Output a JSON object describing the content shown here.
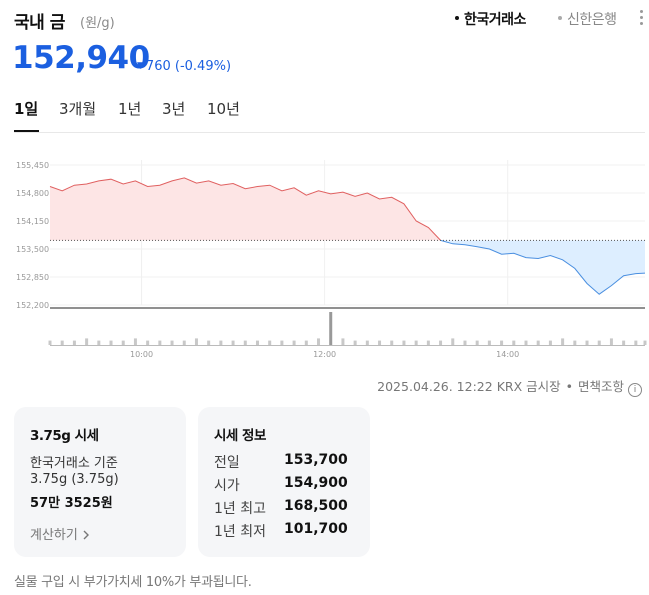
{
  "header": {
    "title": "국내 금",
    "unit": "(원/g)",
    "sources": [
      "한국거래소",
      "신한은행"
    ]
  },
  "price": {
    "current": "152,940",
    "change": "760",
    "change_pct": "(-0.49%)",
    "direction": "down",
    "color": "#1b5fe0"
  },
  "tabs": [
    "1일",
    "3개월",
    "1년",
    "3년",
    "10년"
  ],
  "chart_data": {
    "type": "area",
    "baseline": 153700,
    "ylim": [
      152200,
      155450
    ],
    "y_ticks": [
      "155,450",
      "154,800",
      "154,150",
      "153,500",
      "152,850",
      "152,200"
    ],
    "x_ticks": [
      "10:00",
      "12:00",
      "14:00"
    ],
    "up_color": "#e06060",
    "up_fill": "#fde5e5",
    "down_color": "#4a8fe0",
    "down_fill": "#ddeeff",
    "x": [
      "09:00",
      "09:08",
      "09:16",
      "09:24",
      "09:32",
      "09:40",
      "09:48",
      "09:56",
      "10:04",
      "10:12",
      "10:20",
      "10:28",
      "10:36",
      "10:44",
      "10:52",
      "11:00",
      "11:08",
      "11:16",
      "11:24",
      "11:32",
      "11:40",
      "11:48",
      "11:56",
      "12:04",
      "12:12",
      "12:20",
      "12:28",
      "12:36",
      "12:44",
      "12:52",
      "13:00",
      "13:08",
      "13:16",
      "13:24",
      "13:32",
      "13:40",
      "13:48",
      "13:56",
      "14:04",
      "14:12",
      "14:20",
      "14:28",
      "14:36",
      "14:44",
      "14:52",
      "15:00",
      "15:08",
      "15:16",
      "15:24",
      "15:30"
    ],
    "series": [
      {
        "values": [
          154950,
          154850,
          154980,
          155010,
          155080,
          155120,
          155010,
          155080,
          154950,
          154980,
          155080,
          155150,
          155030,
          155080,
          154980,
          155020,
          154900,
          154950,
          154980,
          154850,
          154920,
          154750,
          154850,
          154780,
          154820,
          154720,
          154800,
          154660,
          154700,
          154550,
          154150,
          154000,
          153700,
          153620,
          153600,
          153550,
          153500,
          153380,
          153400,
          153300,
          153280,
          153350,
          153250,
          153050,
          152700,
          152450,
          152650,
          152880,
          152930,
          152940
        ]
      }
    ],
    "volume": [
      2,
      2,
      2,
      3,
      2,
      2,
      2,
      3,
      2,
      2,
      2,
      2,
      3,
      2,
      2,
      2,
      2,
      2,
      2,
      2,
      2,
      2,
      3,
      15,
      3,
      2,
      2,
      2,
      2,
      2,
      2,
      2,
      2,
      3,
      2,
      2,
      2,
      2,
      2,
      2,
      2,
      2,
      3,
      2,
      2,
      2,
      3,
      2,
      2,
      2
    ]
  },
  "meta": {
    "timestamp": "2025.04.26. 12:22",
    "market": "KRX 금시장",
    "disclaimer": "면책조항",
    "info": "i"
  },
  "card_unit": {
    "title": "3.75g 시세",
    "basis": "한국거래소 기준",
    "weight": "3.75g (3.75g)",
    "amount": "57만 3525원",
    "calc": "계산하기"
  },
  "card_info": {
    "title": "시세 정보",
    "rows": [
      {
        "label": "전일",
        "value": "153,700"
      },
      {
        "label": "시가",
        "value": "154,900"
      },
      {
        "label": "1년 최고",
        "value": "168,500"
      },
      {
        "label": "1년 최저",
        "value": "101,700"
      }
    ]
  },
  "footer": "실물 구입 시 부가가치세 10%가 부과됩니다."
}
